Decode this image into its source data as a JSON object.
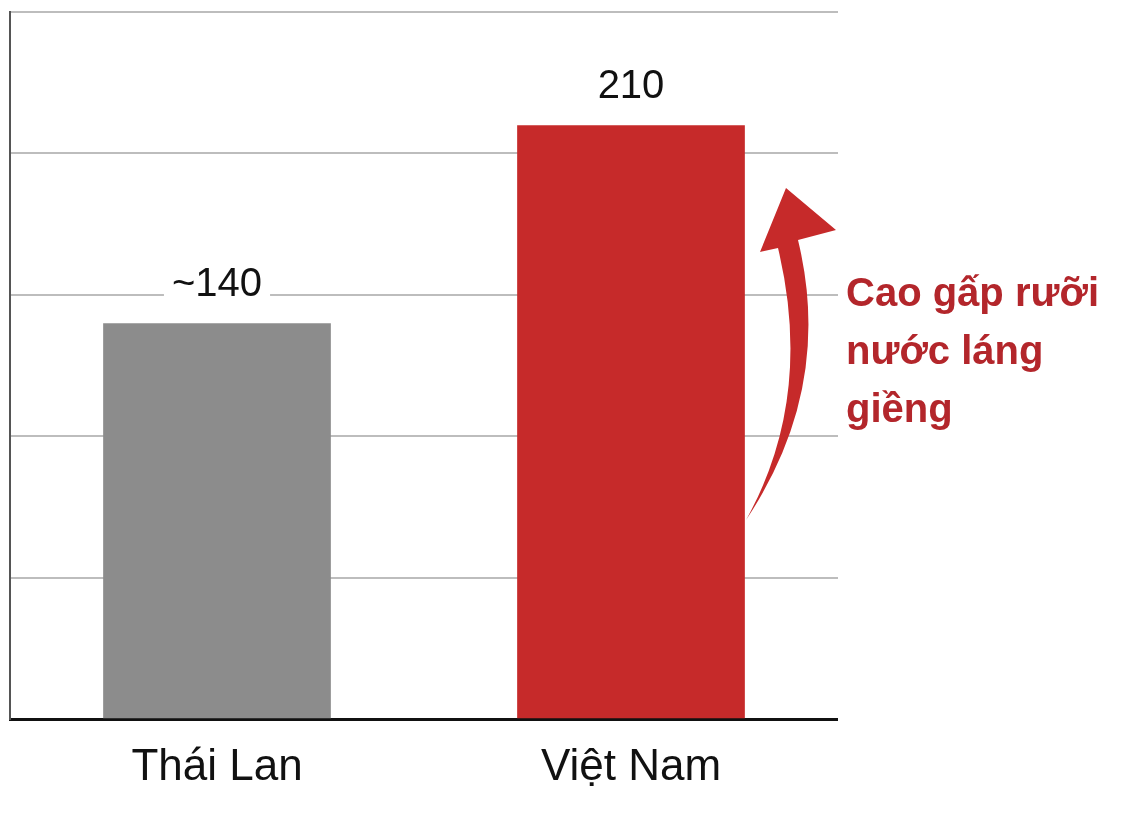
{
  "chart_data": {
    "type": "bar",
    "categories": [
      "Thái Lan",
      "Việt Nam"
    ],
    "values": [
      140,
      210
    ],
    "colors": [
      "#8c8c8c",
      "#c62a2a"
    ],
    "value_labels": [
      "~140",
      "210"
    ],
    "ylim": [
      0,
      250
    ],
    "yticks": [
      {
        "value": 0,
        "label": null
      },
      {
        "value": 50,
        "label": null
      },
      {
        "value": 100,
        "label": null
      },
      {
        "value": 150,
        "label": null
      },
      {
        "value": 200,
        "label": null
      },
      {
        "value": 250,
        "label": null
      }
    ],
    "grid": "y",
    "tick_labels": "x",
    "annotations": [
      "Cao gấp rưỡi nước láng giềng"
    ]
  }
}
